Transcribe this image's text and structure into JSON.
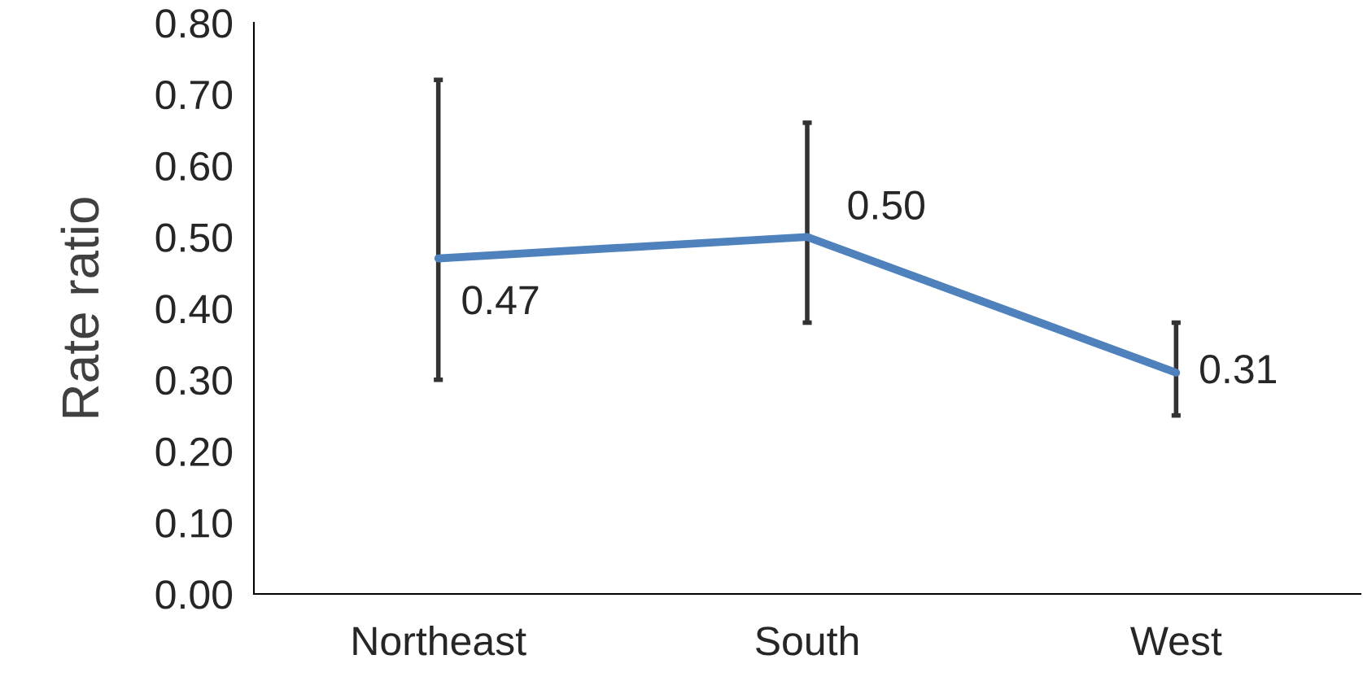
{
  "chart_data": {
    "type": "line",
    "ylabel": "Rate ratio",
    "categories": [
      "Northeast",
      "South",
      "West"
    ],
    "series": [
      {
        "color": "#4f81bd",
        "values": [
          0.47,
          0.5,
          0.31
        ],
        "errors": [
          [
            0.3,
            0.72
          ],
          [
            0.38,
            0.66
          ],
          [
            0.25,
            0.38
          ]
        ]
      }
    ],
    "ylim": [
      0,
      0.8
    ],
    "yticks": [
      {
        "value": 0,
        "label": "0.00"
      },
      {
        "value": 0.1,
        "label": "0.10"
      },
      {
        "value": 0.2,
        "label": "0.20"
      },
      {
        "value": 0.3,
        "label": "0.30"
      },
      {
        "value": 0.4,
        "label": "0.40"
      },
      {
        "value": 0.5,
        "label": "0.50"
      },
      {
        "value": 0.6,
        "label": "0.60"
      },
      {
        "value": 0.7,
        "label": "0.70"
      },
      {
        "value": 0.8,
        "label": "0.80"
      }
    ],
    "value_labels": [
      "0.47",
      "0.50",
      "0.31"
    ],
    "grid": false,
    "legend": false,
    "marker": "none",
    "line_style": "solid"
  }
}
